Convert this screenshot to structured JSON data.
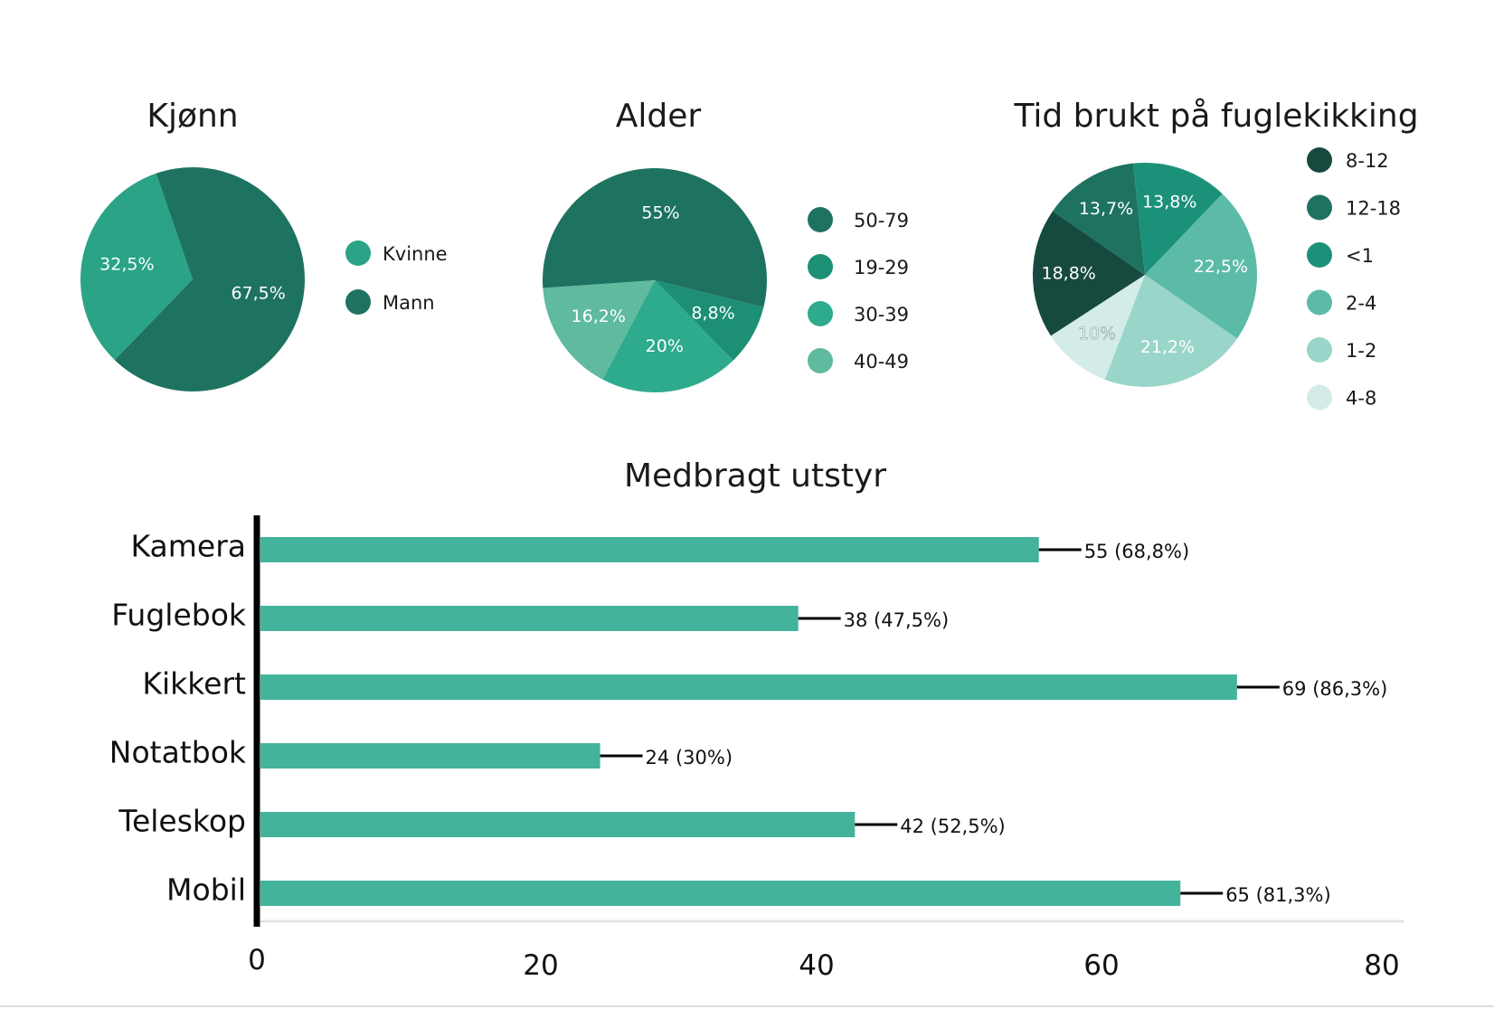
{
  "chart_data": [
    {
      "type": "pie",
      "title": "Kjønn",
      "slices": [
        {
          "label": "Kvinne",
          "value": 32.5,
          "display": "32,5%",
          "color": "#2aa386"
        },
        {
          "label": "Mann",
          "value": 67.5,
          "display": "67,5%",
          "color": "#1e7360"
        }
      ]
    },
    {
      "type": "pie",
      "title": "Alder",
      "slices": [
        {
          "label": "50-79",
          "value": 55,
          "display": "55%",
          "color": "#1e7360"
        },
        {
          "label": "19-29",
          "value": 8.8,
          "display": "8,8%",
          "color": "#1c8f74"
        },
        {
          "label": "30-39",
          "value": 20,
          "display": "20%",
          "color": "#2dab8c"
        },
        {
          "label": "40-49",
          "value": 16.2,
          "display": "16,2%",
          "color": "#5fba9f"
        }
      ]
    },
    {
      "type": "pie",
      "title": "Tid brukt på fuglekikking",
      "slices": [
        {
          "label": "8-12",
          "value": 18.8,
          "display": "18,8%",
          "color": "#174a3f"
        },
        {
          "label": "12-18",
          "value": 13.7,
          "display": "13,7%",
          "color": "#1e7360"
        },
        {
          "label": "<1",
          "value": 13.8,
          "display": "13,8%",
          "color": "#1c917a"
        },
        {
          "label": "2-4",
          "value": 22.5,
          "display": "22,5%",
          "color": "#5cbba7"
        },
        {
          "label": "1-2",
          "value": 21.2,
          "display": "21,2%",
          "color": "#9ad5c9"
        },
        {
          "label": "4-8",
          "value": 10,
          "display": "10%",
          "color": "#d3ece7"
        }
      ]
    },
    {
      "type": "bar",
      "orientation": "horizontal",
      "title": "Medbragt utstyr",
      "categories": [
        "Kamera",
        "Fuglebok",
        "Kikkert",
        "Notatbok",
        "Teleskop",
        "Mobil"
      ],
      "values": [
        55,
        38,
        69,
        24,
        42,
        65
      ],
      "error": [
        3,
        3,
        3,
        3,
        3,
        3
      ],
      "data_labels": [
        "55 (68,8%)",
        "38 (47,5%)",
        "69 (86,3%)",
        "24 (30%)",
        "42 (52,5%)",
        "65 (81,3%)"
      ],
      "xlim": [
        0,
        80
      ],
      "ticks": [
        0,
        20,
        40,
        60,
        80
      ],
      "tick_labels": [
        "0",
        "20",
        "40",
        "60",
        "80"
      ],
      "bar_color": "#43b49b"
    }
  ]
}
